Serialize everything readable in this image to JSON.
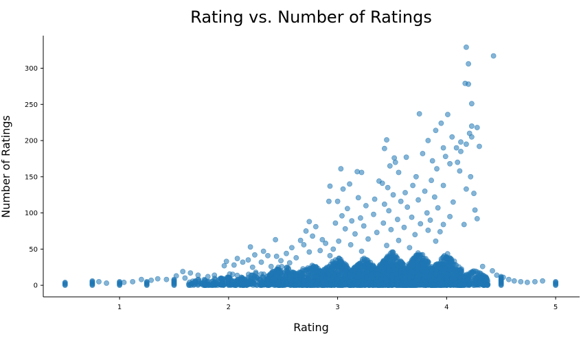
{
  "chart_data": {
    "type": "scatter",
    "title": "Rating vs. Number of Ratings",
    "xlabel": "Rating",
    "ylabel": "Number of Ratings",
    "xlim": [
      0.3,
      5.22
    ],
    "ylim": [
      -16,
      345
    ],
    "xticks": [
      1,
      2,
      3,
      4,
      5
    ],
    "yticks": [
      0,
      50,
      100,
      150,
      200,
      250,
      300
    ],
    "grid": false,
    "legend": "none",
    "marker_color": "#1f77b4",
    "marker_alpha": 0.55,
    "points": [
      [
        4.18,
        329
      ],
      [
        4.43,
        317
      ],
      [
        4.2,
        306
      ],
      [
        4.17,
        279
      ],
      [
        4.2,
        278
      ],
      [
        4.23,
        251
      ],
      [
        3.75,
        237
      ],
      [
        4.01,
        236
      ],
      [
        3.95,
        224
      ],
      [
        4.23,
        220
      ],
      [
        4.28,
        218
      ],
      [
        4.21,
        210
      ],
      [
        3.9,
        214
      ],
      [
        4.05,
        205
      ],
      [
        4.23,
        205
      ],
      [
        3.83,
        200
      ],
      [
        3.45,
        201
      ],
      [
        4.13,
        198
      ],
      [
        4.18,
        195
      ],
      [
        4.3,
        192
      ],
      [
        3.97,
        190
      ],
      [
        4.09,
        190
      ],
      [
        3.43,
        189
      ],
      [
        4.13,
        185
      ],
      [
        3.78,
        182
      ],
      [
        3.99,
        178
      ],
      [
        3.52,
        176
      ],
      [
        3.63,
        177
      ],
      [
        3.87,
        172
      ],
      [
        4.1,
        170
      ],
      [
        3.53,
        170
      ],
      [
        4.03,
        168
      ],
      [
        3.48,
        165
      ],
      [
        3.03,
        161
      ],
      [
        3.91,
        161
      ],
      [
        3.18,
        157
      ],
      [
        4.12,
        158
      ],
      [
        3.56,
        156
      ],
      [
        3.22,
        156
      ],
      [
        3.72,
        150
      ],
      [
        4.22,
        150
      ],
      [
        3.38,
        144
      ],
      [
        3.86,
        145
      ],
      [
        3.41,
        141
      ],
      [
        3.11,
        140
      ],
      [
        3.69,
        138
      ],
      [
        2.93,
        137
      ],
      [
        3.97,
        138
      ],
      [
        3.46,
        135
      ],
      [
        4.18,
        133
      ],
      [
        3.05,
        133
      ],
      [
        3.8,
        130
      ],
      [
        3.62,
        128
      ],
      [
        4.25,
        127
      ],
      [
        3.51,
        125
      ],
      [
        3.19,
        121
      ],
      [
        3.89,
        122
      ],
      [
        3.34,
        119
      ],
      [
        2.92,
        116
      ],
      [
        3.0,
        116
      ],
      [
        3.58,
        116
      ],
      [
        3.74,
        118
      ],
      [
        4.06,
        115
      ],
      [
        3.43,
        112
      ],
      [
        3.26,
        110
      ],
      [
        3.64,
        108
      ],
      [
        3.92,
        107
      ],
      [
        3.09,
        106
      ],
      [
        4.26,
        104
      ],
      [
        3.47,
        103
      ],
      [
        3.82,
        100
      ],
      [
        3.33,
        98
      ],
      [
        3.04,
        96
      ],
      [
        4.03,
        95
      ],
      [
        3.68,
        94
      ],
      [
        3.21,
        93
      ],
      [
        4.28,
        92
      ],
      [
        3.55,
        91
      ],
      [
        3.85,
        90
      ],
      [
        3.13,
        89
      ],
      [
        2.98,
        86
      ],
      [
        2.74,
        88
      ],
      [
        3.42,
        86
      ],
      [
        3.76,
        85
      ],
      [
        3.97,
        84
      ],
      [
        4.16,
        84
      ],
      [
        2.8,
        81
      ],
      [
        3.24,
        82
      ],
      [
        3.61,
        80
      ],
      [
        3.49,
        77
      ],
      [
        3.07,
        78
      ],
      [
        3.83,
        76
      ],
      [
        2.71,
        75
      ],
      [
        3.94,
        74
      ],
      [
        3.36,
        73
      ],
      [
        3.16,
        71
      ],
      [
        2.77,
        68
      ],
      [
        3.71,
        70
      ],
      [
        2.43,
        63
      ],
      [
        2.86,
        63
      ],
      [
        3.01,
        61
      ],
      [
        3.28,
        64
      ],
      [
        2.66,
        62
      ],
      [
        3.56,
        62
      ],
      [
        3.9,
        61
      ],
      [
        2.89,
        58
      ],
      [
        2.69,
        56
      ],
      [
        3.12,
        56
      ],
      [
        2.2,
        53
      ],
      [
        3.45,
        55
      ],
      [
        2.58,
        52
      ],
      [
        2.96,
        50
      ],
      [
        2.84,
        48
      ],
      [
        3.66,
        52
      ],
      [
        2.32,
        47
      ],
      [
        3.22,
        47
      ],
      [
        2.74,
        46
      ],
      [
        2.53,
        44
      ],
      [
        2.24,
        42
      ],
      [
        2.36,
        41
      ],
      [
        2.44,
        40
      ],
      [
        2.62,
        38
      ],
      [
        2.93,
        41
      ],
      [
        2.08,
        37
      ],
      [
        2.18,
        35
      ],
      [
        1.98,
        33
      ],
      [
        2.3,
        32
      ],
      [
        2.48,
        34
      ],
      [
        2.13,
        32
      ],
      [
        2.56,
        31
      ],
      [
        1.96,
        27
      ],
      [
        2.05,
        28
      ],
      [
        2.22,
        25
      ],
      [
        2.39,
        26
      ],
      [
        4.42,
        20
      ],
      [
        4.33,
        26
      ],
      [
        4.46,
        14
      ],
      [
        4.52,
        11
      ],
      [
        4.57,
        8
      ],
      [
        4.62,
        6
      ],
      [
        4.68,
        5
      ],
      [
        4.74,
        4
      ],
      [
        4.81,
        5
      ],
      [
        4.88,
        6
      ],
      [
        1.58,
        19
      ],
      [
        1.65,
        17
      ],
      [
        1.72,
        14
      ],
      [
        1.52,
        13
      ],
      [
        1.81,
        12
      ],
      [
        1.87,
        14
      ],
      [
        1.6,
        10
      ],
      [
        1.92,
        9
      ],
      [
        1.35,
        9
      ],
      [
        1.43,
        8
      ],
      [
        1.29,
        7
      ],
      [
        1.2,
        8
      ],
      [
        1.12,
        5
      ],
      [
        1.04,
        4
      ],
      [
        0.81,
        5
      ],
      [
        0.88,
        3
      ]
    ],
    "dense_bands": [
      {
        "center": 2.0,
        "half_width": 0.15,
        "y_peak": 20,
        "count": 110
      },
      {
        "center": 2.25,
        "half_width": 0.14,
        "y_peak": 22,
        "count": 120
      },
      {
        "center": 2.5,
        "half_width": 0.15,
        "y_peak": 30,
        "count": 240
      },
      {
        "center": 2.75,
        "half_width": 0.14,
        "y_peak": 32,
        "count": 280
      },
      {
        "center": 3.0,
        "half_width": 0.15,
        "y_peak": 40,
        "count": 450
      },
      {
        "center": 3.25,
        "half_width": 0.14,
        "y_peak": 40,
        "count": 480
      },
      {
        "center": 3.5,
        "half_width": 0.15,
        "y_peak": 48,
        "count": 620
      },
      {
        "center": 3.75,
        "half_width": 0.14,
        "y_peak": 48,
        "count": 600
      },
      {
        "center": 4.0,
        "half_width": 0.15,
        "y_peak": 45,
        "count": 520
      },
      {
        "center": 4.25,
        "half_width": 0.13,
        "y_peak": 22,
        "count": 200
      },
      {
        "center": 1.75,
        "half_width": 0.12,
        "y_peak": 10,
        "count": 55
      }
    ],
    "stacked_columns": [
      {
        "x": 0.5,
        "max": 4
      },
      {
        "x": 0.75,
        "max": 6
      },
      {
        "x": 1.0,
        "max": 5
      },
      {
        "x": 1.25,
        "max": 5
      },
      {
        "x": 1.5,
        "max": 8
      },
      {
        "x": 2.0,
        "max": 10
      },
      {
        "x": 2.5,
        "max": 10
      },
      {
        "x": 3.0,
        "max": 10
      },
      {
        "x": 3.5,
        "max": 12
      },
      {
        "x": 4.0,
        "max": 12
      },
      {
        "x": 4.5,
        "max": 12
      },
      {
        "x": 5.0,
        "max": 5
      }
    ]
  }
}
